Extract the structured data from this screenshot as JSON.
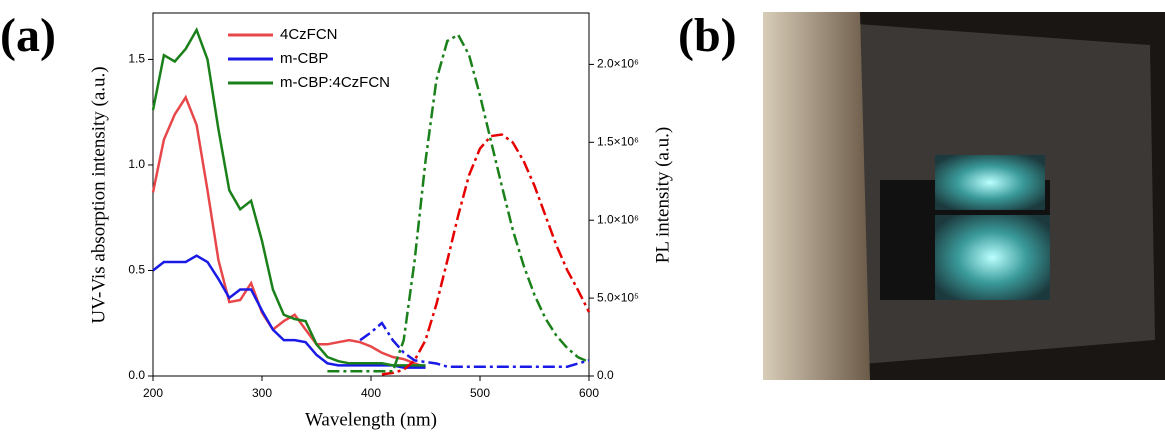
{
  "chart_data": {
    "type": "line",
    "panel_label": "(a)",
    "xlabel": "Wavelength (nm)",
    "ylabel": "UV-Vis absorption intensity (a.u.)",
    "y2label": "PL intensity (a.u.)",
    "legend": "upper center",
    "xlim": [
      200,
      600
    ],
    "xticks": [
      200,
      300,
      400,
      500,
      600
    ],
    "ylim": [
      0,
      1.72
    ],
    "yticks": [
      {
        "value": 0,
        "label": "0.0"
      },
      0.5,
      {
        "value": 1,
        "label": "1.0"
      },
      1.5
    ],
    "y2lim": [
      0,
      2330000
    ],
    "y2ticks": [
      {
        "value": 0,
        "label": "0.0"
      },
      {
        "value": 500000,
        "label": "5.0×10⁵"
      },
      {
        "value": 1000000,
        "label": "1.0×10⁶"
      },
      {
        "value": 1500000,
        "label": "1.5×10⁶"
      },
      {
        "value": 2000000,
        "label": "2.0×10⁶"
      }
    ],
    "x": [
      200,
      210,
      220,
      230,
      240,
      250,
      260,
      270,
      280,
      290,
      300,
      310,
      320,
      330,
      340,
      350,
      360,
      370,
      380,
      390,
      400,
      410,
      420,
      430,
      440,
      450,
      460,
      470,
      480,
      490,
      500,
      510,
      520,
      530,
      540,
      550,
      560,
      570,
      580,
      590,
      600
    ],
    "series": [
      {
        "name": "4CzFCN",
        "color": "#e8474a",
        "style": "solid",
        "values": [
          0.87,
          1.12,
          1.24,
          1.32,
          1.19,
          0.88,
          0.55,
          0.35,
          0.36,
          0.44,
          0.3,
          0.22,
          0.26,
          0.29,
          0.22,
          0.15,
          0.15,
          0.16,
          0.17,
          0.16,
          0.14,
          0.11,
          0.09,
          0.08,
          0.06,
          0.04,
          null,
          null,
          null,
          null,
          null,
          null,
          null,
          null,
          null,
          null,
          null,
          null,
          null,
          null,
          null
        ]
      },
      {
        "name": "m-CBP",
        "color": "#1a1ae6",
        "style": "solid",
        "values": [
          0.5,
          0.54,
          0.54,
          0.54,
          0.57,
          0.54,
          0.46,
          0.37,
          0.41,
          0.41,
          0.31,
          0.22,
          0.17,
          0.17,
          0.16,
          0.1,
          0.06,
          0.05,
          0.05,
          0.05,
          0.05,
          0.05,
          0.05,
          0.04,
          0.04,
          0.04,
          null,
          null,
          null,
          null,
          null,
          null,
          null,
          null,
          null,
          null,
          null,
          null,
          null,
          null,
          null
        ]
      },
      {
        "name": "m-CBP:4CzFCN",
        "color": "#1a801a",
        "style": "solid",
        "values": [
          1.26,
          1.52,
          1.49,
          1.55,
          1.64,
          1.5,
          1.17,
          0.88,
          0.79,
          0.83,
          0.64,
          0.41,
          0.29,
          0.27,
          0.26,
          0.15,
          0.09,
          0.07,
          0.06,
          0.06,
          0.06,
          0.06,
          0.05,
          0.05,
          0.05,
          0.05,
          null,
          null,
          null,
          null,
          null,
          null,
          null,
          null,
          null,
          null,
          null,
          null,
          null,
          null,
          null
        ]
      },
      {
        "color": "#e60000",
        "style": "dashdot",
        "axis": "y2",
        "values": [
          null,
          null,
          null,
          null,
          null,
          null,
          null,
          null,
          null,
          null,
          null,
          null,
          null,
          null,
          null,
          null,
          null,
          null,
          null,
          null,
          null,
          10000,
          20000,
          40000,
          100000,
          230000,
          460000,
          740000,
          1030000,
          1290000,
          1460000,
          1540000,
          1550000,
          1500000,
          1380000,
          1220000,
          1030000,
          840000,
          680000,
          550000,
          410000
        ]
      },
      {
        "color": "#1a1ae6",
        "style": "dashdot",
        "axis": "y2",
        "values": [
          null,
          null,
          null,
          null,
          null,
          null,
          null,
          null,
          null,
          null,
          null,
          null,
          null,
          null,
          null,
          null,
          null,
          null,
          null,
          230000,
          280000,
          340000,
          230000,
          150000,
          100000,
          90000,
          80000,
          60000,
          60000,
          60000,
          60000,
          60000,
          60000,
          60000,
          60000,
          60000,
          60000,
          60000,
          60000,
          80000,
          100000
        ]
      },
      {
        "color": "#1a801a",
        "style": "dashdot",
        "axis": "y2",
        "values": [
          null,
          null,
          null,
          null,
          null,
          null,
          null,
          null,
          null,
          null,
          null,
          null,
          null,
          null,
          null,
          null,
          30000,
          30000,
          30000,
          30000,
          30000,
          30000,
          30000,
          230000,
          740000,
          1380000,
          1900000,
          2150000,
          2190000,
          2060000,
          1800000,
          1510000,
          1220000,
          940000,
          710000,
          520000,
          370000,
          260000,
          180000,
          120000,
          90000
        ]
      }
    ]
  },
  "photo": {
    "panel_label": "(b)"
  }
}
